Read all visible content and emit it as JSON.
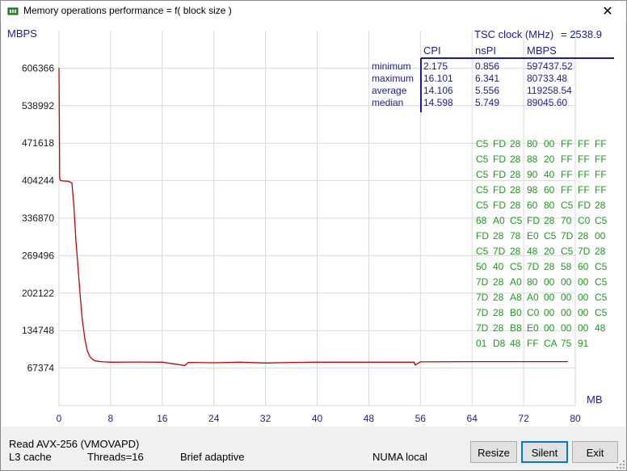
{
  "window": {
    "title": "Memory operations performance = f( block size )",
    "close_glyph": "✕",
    "icon": "memory-chip-icon"
  },
  "chart_data": {
    "type": "line",
    "ylabel": "MBPS",
    "xlabel": "MB",
    "xlim": [
      0,
      80
    ],
    "ylim": [
      0,
      673740
    ],
    "x_ticks": [
      "0",
      "8",
      "16",
      "24",
      "32",
      "40",
      "48",
      "56",
      "64",
      "72",
      "80"
    ],
    "y_ticks": [
      "606366",
      "538992",
      "471618",
      "404244",
      "336870",
      "269496",
      "202122",
      "134748",
      "67374"
    ],
    "grid": true,
    "line_color": "#cc0000",
    "series": [
      {
        "x": [
          0.0,
          0.05,
          0.1,
          0.2,
          0.3,
          0.5,
          1.0,
          1.5,
          2.0,
          2.3,
          2.6,
          3.0,
          3.3,
          3.6,
          4.0,
          4.4,
          4.8,
          5.2,
          5.6,
          6.0,
          6.5,
          7.0,
          8.0,
          12,
          16,
          19.5,
          20,
          24,
          28,
          32,
          36,
          40,
          48,
          55,
          55.2,
          56,
          64,
          72,
          78.8
        ],
        "y": [
          606366,
          520000,
          410000,
          405000,
          404244,
          404000,
          403500,
          403000,
          400000,
          360000,
          300000,
          240000,
          195000,
          155000,
          120000,
          98000,
          88000,
          83000,
          80500,
          79500,
          79000,
          78500,
          78000,
          78200,
          78000,
          72000,
          77500,
          77000,
          78000,
          76500,
          77500,
          78000,
          78000,
          78000,
          73000,
          78500,
          79000,
          79000,
          79000
        ]
      }
    ]
  },
  "tsc": {
    "label": "TSC clock (MHz)",
    "value": "=  2538.9"
  },
  "stats": {
    "headers": [
      "CPI",
      "nsPI",
      "MBPS"
    ],
    "rows": [
      {
        "name": "minimum",
        "cpi": "2.175",
        "nspi": "0.856",
        "mbps": "597437.52"
      },
      {
        "name": "maximum",
        "cpi": "16.101",
        "nspi": "6.341",
        "mbps": "80733.48"
      },
      {
        "name": "average",
        "cpi": "14.106",
        "nspi": "5.556",
        "mbps": "119258.54"
      },
      {
        "name": "median",
        "cpi": "14.598",
        "nspi": "5.749",
        "mbps": "89045.60"
      }
    ]
  },
  "hex_dump": [
    [
      "C5",
      "FD",
      "28",
      "80",
      "00",
      "FF",
      "FF",
      "FF"
    ],
    [
      "C5",
      "FD",
      "28",
      "88",
      "20",
      "FF",
      "FF",
      "FF"
    ],
    [
      "C5",
      "FD",
      "28",
      "90",
      "40",
      "FF",
      "FF",
      "FF"
    ],
    [
      "C5",
      "FD",
      "28",
      "98",
      "60",
      "FF",
      "FF",
      "FF"
    ],
    [
      "C5",
      "FD",
      "28",
      "60",
      "80",
      "C5",
      "FD",
      "28"
    ],
    [
      "68",
      "A0",
      "C5",
      "FD",
      "28",
      "70",
      "C0",
      "C5"
    ],
    [
      "FD",
      "28",
      "78",
      "E0",
      "C5",
      "7D",
      "28",
      "00"
    ],
    [
      "C5",
      "7D",
      "28",
      "48",
      "20",
      "C5",
      "7D",
      "28"
    ],
    [
      "50",
      "40",
      "C5",
      "7D",
      "28",
      "58",
      "60",
      "C5"
    ],
    [
      "7D",
      "28",
      "A0",
      "80",
      "00",
      "00",
      "00",
      "C5"
    ],
    [
      "7D",
      "28",
      "A8",
      "A0",
      "00",
      "00",
      "00",
      "C5"
    ],
    [
      "7D",
      "28",
      "B0",
      "C0",
      "00",
      "00",
      "00",
      "C5"
    ],
    [
      "7D",
      "28",
      "B8",
      "E0",
      "00",
      "00",
      "00",
      "48"
    ],
    [
      "01",
      "D8",
      "48",
      "FF",
      "CA",
      "75",
      "91"
    ]
  ],
  "status": {
    "operation": "Read AVX-256 (VMOVAPD)",
    "cache": "L3 cache",
    "threads": "Threads=16",
    "mode": "Brief adaptive",
    "numa": "NUMA local"
  },
  "buttons": {
    "resize": "Resize",
    "silent": "Silent",
    "exit": "Exit"
  },
  "colors": {
    "axis_text": "#1a1aa6",
    "hex_text": "#1f9a1f",
    "grid": "#d9d9d9",
    "table_rule": "#1a1aa6"
  }
}
